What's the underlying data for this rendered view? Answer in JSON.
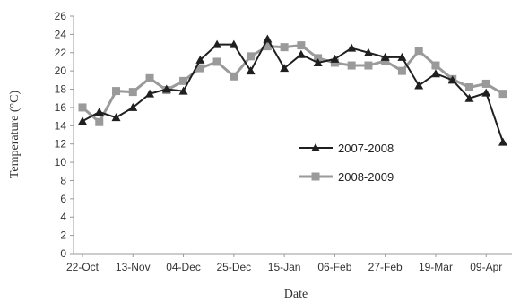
{
  "chart_data": {
    "type": "line",
    "title": "",
    "xlabel": "Date",
    "ylabel": "Temperature (°C)",
    "ylim": [
      0,
      26
    ],
    "ytick_step": 2,
    "x_tick_labels": [
      "22-Oct",
      "13-Nov",
      "04-Dec",
      "25-Dec",
      "15-Jan",
      "06-Feb",
      "27-Feb",
      "19-Mar",
      "09-Apr"
    ],
    "x_tick_index": [
      0,
      3,
      6,
      9,
      12,
      15,
      18,
      21,
      24
    ],
    "grid": false,
    "legend_position": "center-right",
    "series": [
      {
        "name": "2007-2008",
        "color": "#1f1f1f",
        "marker": "triangle",
        "values": [
          14.5,
          15.5,
          14.9,
          16.0,
          17.5,
          18.0,
          17.8,
          21.2,
          22.9,
          22.9,
          20.0,
          23.5,
          20.3,
          21.8,
          20.9,
          21.3,
          22.5,
          22.0,
          21.5,
          21.5,
          18.4,
          19.7,
          19.0,
          17.0,
          17.6,
          12.2
        ]
      },
      {
        "name": "2008-2009",
        "color": "#9a9a9a",
        "marker": "square",
        "values": [
          16.0,
          14.4,
          17.8,
          17.7,
          19.2,
          17.9,
          18.9,
          20.3,
          21.0,
          19.4,
          21.6,
          22.7,
          22.6,
          22.8,
          21.4,
          20.9,
          20.6,
          20.6,
          21.1,
          20.0,
          22.2,
          20.6,
          19.1,
          18.2,
          18.6,
          17.5
        ]
      }
    ]
  }
}
